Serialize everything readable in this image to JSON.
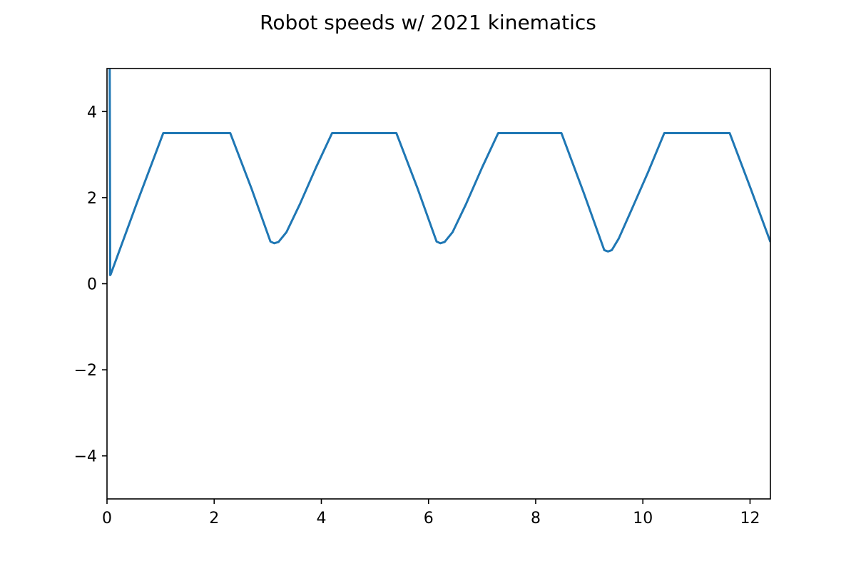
{
  "chart_data": {
    "type": "line",
    "title": "Robot speeds w/ 2021 kinematics",
    "xlabel": "",
    "ylabel": "",
    "xlim": [
      0,
      12.38
    ],
    "ylim": [
      -5,
      5
    ],
    "grid": false,
    "x_ticks": [
      "0",
      "2",
      "4",
      "6",
      "8",
      "10",
      "12"
    ],
    "y_ticks": [
      "4",
      "2",
      "0",
      "−2",
      "−4"
    ],
    "series": [
      {
        "color": "#1f77b4",
        "x": [
          0.0,
          0.02,
          0.04,
          0.05,
          0.06,
          0.07,
          0.55,
          1.05,
          1.7,
          2.3,
          2.7,
          3.05,
          3.12,
          3.2,
          3.35,
          3.6,
          3.9,
          4.2,
          4.8,
          5.4,
          5.8,
          6.15,
          6.22,
          6.3,
          6.45,
          6.7,
          7.0,
          7.3,
          7.9,
          8.48,
          8.9,
          9.28,
          9.35,
          9.42,
          9.55,
          9.8,
          10.1,
          10.4,
          11.0,
          11.62,
          12.0,
          12.38
        ],
        "y": [
          5.3,
          5.3,
          5.3,
          5.3,
          0.2,
          0.22,
          1.85,
          3.5,
          3.5,
          3.5,
          2.2,
          0.98,
          0.94,
          0.97,
          1.2,
          1.85,
          2.7,
          3.5,
          3.5,
          3.5,
          2.2,
          0.98,
          0.94,
          0.97,
          1.2,
          1.85,
          2.7,
          3.5,
          3.5,
          3.5,
          2.1,
          0.78,
          0.75,
          0.78,
          1.05,
          1.75,
          2.6,
          3.5,
          3.5,
          3.5,
          2.25,
          0.97
        ]
      }
    ]
  }
}
